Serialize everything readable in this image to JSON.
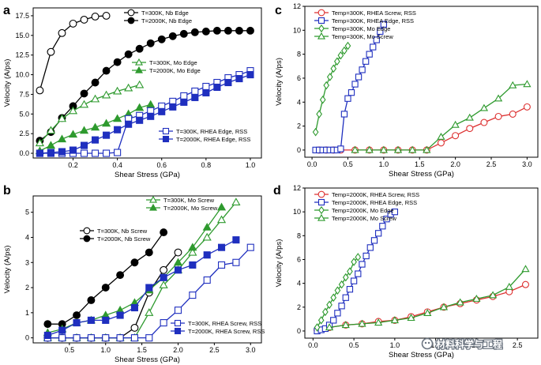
{
  "figure": {
    "watermark": "材料科学与工程"
  },
  "chart_data": [
    {
      "panel": "a",
      "type": "line",
      "xlabel": "Shear Stress (GPa)",
      "ylabel": "Velocity (A/ps)",
      "xlim": [
        0.02,
        1.05
      ],
      "ylim": [
        -0.6,
        18.5
      ],
      "xticks": [
        0.2,
        0.4,
        0.6,
        0.8,
        1.0
      ],
      "xticklabels": [
        "0.2",
        "0.4",
        "0.6",
        "0.8",
        "1.0"
      ],
      "yticks": [
        0,
        2.5,
        5,
        7.5,
        10,
        12.5,
        15,
        17.5
      ],
      "yticklabels": [
        "0.0",
        "2.5",
        "5.0",
        "7.5",
        "10.0",
        "12.5",
        "15.0",
        "17.5"
      ],
      "legend_groups": [
        {
          "anchor": "top-center",
          "entries": [
            0,
            1
          ]
        },
        {
          "anchor": "upper-middle",
          "entries": [
            2,
            3
          ]
        },
        {
          "anchor": "lower-right",
          "entries": [
            4,
            5
          ]
        }
      ],
      "series": [
        {
          "name": "T=300K, Nb Edge",
          "color": "#000000",
          "marker": "circle",
          "filled": false,
          "x": [
            0.05,
            0.1,
            0.15,
            0.2,
            0.25,
            0.3,
            0.35
          ],
          "y": [
            8.0,
            12.9,
            15.3,
            16.5,
            17.0,
            17.4,
            17.5
          ]
        },
        {
          "name": "T=2000K, Nb Edge",
          "color": "#000000",
          "marker": "circle",
          "filled": true,
          "x": [
            0.05,
            0.1,
            0.15,
            0.2,
            0.25,
            0.3,
            0.35,
            0.4,
            0.45,
            0.5,
            0.55,
            0.6,
            0.65,
            0.7,
            0.75,
            0.8,
            0.85,
            0.9,
            0.95,
            1.0
          ],
          "y": [
            1.6,
            2.7,
            4.5,
            6.0,
            7.6,
            9.0,
            10.5,
            11.6,
            12.6,
            13.3,
            14.0,
            14.5,
            14.9,
            15.2,
            15.4,
            15.5,
            15.6,
            15.6,
            15.6,
            15.6
          ]
        },
        {
          "name": "T=300K, Mo Edge",
          "color": "#2e9a2e",
          "marker": "triangle",
          "filled": false,
          "x": [
            0.05,
            0.1,
            0.15,
            0.2,
            0.25,
            0.3,
            0.35,
            0.4,
            0.45,
            0.5
          ],
          "y": [
            1.3,
            2.9,
            4.4,
            5.4,
            6.2,
            6.9,
            7.4,
            7.9,
            8.3,
            8.7
          ]
        },
        {
          "name": "T=2000K, Mo Edge",
          "color": "#2e9a2e",
          "marker": "triangle",
          "filled": true,
          "x": [
            0.05,
            0.1,
            0.15,
            0.2,
            0.25,
            0.3,
            0.35,
            0.4,
            0.45,
            0.5,
            0.55
          ],
          "y": [
            0.3,
            1.0,
            1.8,
            2.4,
            2.9,
            3.3,
            3.8,
            4.4,
            5.0,
            5.8,
            6.2
          ]
        },
        {
          "name": "T=300K, RHEA Edge, RSS",
          "color": "#1f2fbf",
          "marker": "square",
          "filled": false,
          "x": [
            0.05,
            0.1,
            0.15,
            0.2,
            0.25,
            0.3,
            0.35,
            0.4,
            0.45,
            0.5,
            0.55,
            0.6,
            0.65,
            0.7,
            0.75,
            0.8,
            0.85,
            0.9,
            0.95,
            1.0
          ],
          "y": [
            0.0,
            0.0,
            0.0,
            0.0,
            0.0,
            0.0,
            0.0,
            0.1,
            4.4,
            4.8,
            5.4,
            6.0,
            6.6,
            7.3,
            7.9,
            8.5,
            9.0,
            9.6,
            10.0,
            10.5
          ]
        },
        {
          "name": "T=2000K, RHEA Edge, RSS",
          "color": "#1f2fbf",
          "marker": "square",
          "filled": true,
          "x": [
            0.05,
            0.1,
            0.15,
            0.2,
            0.25,
            0.3,
            0.35,
            0.4,
            0.45,
            0.5,
            0.55,
            0.6,
            0.65,
            0.7,
            0.75,
            0.8,
            0.85,
            0.9,
            0.95,
            1.0
          ],
          "y": [
            0.0,
            0.1,
            0.2,
            0.4,
            1.0,
            1.7,
            2.3,
            3.0,
            3.7,
            4.2,
            4.7,
            5.3,
            5.9,
            6.5,
            7.1,
            7.7,
            8.4,
            9.0,
            9.5,
            10.0
          ]
        }
      ]
    },
    {
      "panel": "b",
      "type": "line",
      "xlabel": "Shear Stress (GPa)",
      "ylabel": "Velocity (A/ps)",
      "xlim": [
        0.0,
        3.15
      ],
      "ylim": [
        -0.2,
        5.65
      ],
      "xticks": [
        0.5,
        1.0,
        1.5,
        2.0,
        2.5,
        3.0
      ],
      "xticklabels": [
        "0.5",
        "1.0",
        "1.5",
        "2.0",
        "2.5",
        "3.0"
      ],
      "yticks": [
        0,
        1,
        2,
        3,
        4,
        5
      ],
      "yticklabels": [
        "0",
        "1",
        "2",
        "3",
        "4",
        "5"
      ],
      "legend_groups": [
        {
          "anchor": "top-right-inner",
          "entries": [
            2,
            3
          ]
        },
        {
          "anchor": "upper-left-middle",
          "entries": [
            0,
            1
          ]
        },
        {
          "anchor": "lower-right",
          "entries": [
            4,
            5
          ]
        }
      ],
      "series": [
        {
          "name": "T=300K, Nb Screw",
          "color": "#000000",
          "marker": "circle",
          "filled": false,
          "x": [
            0.2,
            0.4,
            0.6,
            0.8,
            1.0,
            1.2,
            1.4,
            1.6,
            1.8,
            2.0
          ],
          "y": [
            0.0,
            0.0,
            0.0,
            0.0,
            0.0,
            0.0,
            0.4,
            1.8,
            2.7,
            3.4
          ]
        },
        {
          "name": "T=2000K, Nb Screw",
          "color": "#000000",
          "marker": "circle",
          "filled": true,
          "x": [
            0.2,
            0.4,
            0.6,
            0.8,
            1.0,
            1.2,
            1.4,
            1.6,
            1.8
          ],
          "y": [
            0.55,
            0.55,
            0.9,
            1.5,
            2.0,
            2.5,
            3.0,
            3.4,
            4.2
          ]
        },
        {
          "name": "T=300K, Mo Screw",
          "color": "#2e9a2e",
          "marker": "triangle",
          "filled": false,
          "x": [
            0.2,
            0.4,
            0.6,
            0.8,
            1.0,
            1.2,
            1.4,
            1.6,
            1.8,
            2.0,
            2.2,
            2.4,
            2.6,
            2.8
          ],
          "y": [
            0.0,
            0.0,
            0.0,
            0.0,
            0.0,
            0.0,
            0.0,
            1.0,
            2.1,
            2.7,
            3.4,
            4.0,
            4.7,
            5.4
          ]
        },
        {
          "name": "T=2000K, Mo Screw",
          "color": "#2e9a2e",
          "marker": "triangle",
          "filled": true,
          "x": [
            0.2,
            0.4,
            0.6,
            0.8,
            1.0,
            1.2,
            1.4,
            1.6,
            1.8,
            2.0,
            2.2,
            2.4,
            2.6
          ],
          "y": [
            0.2,
            0.35,
            0.6,
            0.7,
            0.9,
            1.1,
            1.4,
            1.9,
            2.4,
            3.0,
            3.6,
            4.4,
            5.2
          ]
        },
        {
          "name": "T=300K, RHEA Screw, RSS",
          "color": "#1f2fbf",
          "marker": "square",
          "filled": false,
          "x": [
            0.2,
            0.4,
            0.6,
            0.8,
            1.0,
            1.2,
            1.4,
            1.6,
            1.8,
            2.0,
            2.2,
            2.4,
            2.6,
            2.8,
            3.0
          ],
          "y": [
            0.0,
            0.0,
            0.0,
            0.0,
            0.0,
            0.0,
            0.0,
            0.0,
            0.6,
            1.1,
            1.7,
            2.3,
            2.9,
            3.0,
            3.6
          ]
        },
        {
          "name": "T=2000K, RHEA Screw, RSS",
          "color": "#1f2fbf",
          "marker": "square",
          "filled": true,
          "x": [
            0.2,
            0.4,
            0.6,
            0.8,
            1.0,
            1.2,
            1.4,
            1.6,
            1.8,
            2.0,
            2.2,
            2.4,
            2.6,
            2.8
          ],
          "y": [
            0.1,
            0.3,
            0.6,
            0.7,
            0.7,
            0.9,
            1.2,
            2.0,
            2.4,
            2.7,
            2.9,
            3.3,
            3.6,
            3.9
          ]
        }
      ]
    },
    {
      "panel": "c",
      "type": "line",
      "xlabel": "Shear Stress (GPa)",
      "ylabel": "Velocity (A/ps)",
      "xlim": [
        -0.1,
        3.15
      ],
      "ylim": [
        -0.6,
        12.0
      ],
      "xticks": [
        0.0,
        0.5,
        1.0,
        1.5,
        2.0,
        2.5,
        3.0
      ],
      "xticklabels": [
        "0.0",
        "0.5",
        "1.0",
        "1.5",
        "2.0",
        "2.5",
        "3.0"
      ],
      "yticks": [
        0,
        2,
        4,
        6,
        8,
        10,
        12
      ],
      "yticklabels": [
        "0",
        "2",
        "4",
        "6",
        "8",
        "10",
        "12"
      ],
      "legend_groups": [
        {
          "anchor": "top-left",
          "entries": [
            0,
            1,
            2,
            3
          ]
        }
      ],
      "series": [
        {
          "name": "Temp=300K, RHEA Screw, RSS",
          "color": "#dd3030",
          "marker": "circle",
          "filled": false,
          "x": [
            0.1,
            0.2,
            0.3,
            0.4,
            0.6,
            0.8,
            1.0,
            1.2,
            1.4,
            1.6,
            1.8,
            2.0,
            2.2,
            2.4,
            2.6,
            2.8,
            3.0
          ],
          "y": [
            0,
            0,
            0,
            0,
            0,
            0,
            0,
            0,
            0,
            0.0,
            0.6,
            1.2,
            1.8,
            2.3,
            2.8,
            3.0,
            3.6
          ]
        },
        {
          "name": "Temp=300K, RHEA Edge, RSS",
          "color": "#1f2fbf",
          "marker": "square",
          "filled": false,
          "x": [
            0.05,
            0.1,
            0.15,
            0.2,
            0.25,
            0.3,
            0.35,
            0.4,
            0.45,
            0.5,
            0.55,
            0.6,
            0.65,
            0.7,
            0.75,
            0.8,
            0.85,
            0.9,
            0.95,
            1.0
          ],
          "y": [
            0.0,
            0.0,
            0.0,
            0.0,
            0.0,
            0.0,
            0.0,
            0.1,
            3.0,
            4.3,
            4.8,
            5.5,
            6.1,
            6.7,
            7.4,
            8.0,
            8.6,
            9.2,
            9.9,
            10.5
          ]
        },
        {
          "name": "Temp=300K, Mo Edge",
          "color": "#2e9a2e",
          "marker": "diamond",
          "filled": false,
          "x": [
            0.05,
            0.1,
            0.15,
            0.2,
            0.25,
            0.3,
            0.35,
            0.4,
            0.45,
            0.5
          ],
          "y": [
            1.5,
            3.0,
            4.2,
            5.4,
            6.1,
            6.8,
            7.4,
            7.9,
            8.3,
            8.7
          ]
        },
        {
          "name": "Temp=300K, Mo Screw",
          "color": "#2e9a2e",
          "marker": "triangle",
          "filled": false,
          "x": [
            0.6,
            0.8,
            1.0,
            1.2,
            1.4,
            1.6,
            1.8,
            2.0,
            2.2,
            2.4,
            2.6,
            2.8,
            3.0
          ],
          "y": [
            0.0,
            0.0,
            0.0,
            0.0,
            0.0,
            0.0,
            1.1,
            2.1,
            2.7,
            3.5,
            4.3,
            5.4,
            5.5
          ]
        }
      ]
    },
    {
      "panel": "d",
      "type": "line",
      "xlabel": "Shear Stress (GPa)",
      "ylabel": "Velocity (A/ps)",
      "xlim": [
        -0.1,
        2.75
      ],
      "ylim": [
        -0.6,
        12.0
      ],
      "xticks": [
        0.0,
        0.5,
        1.0,
        1.5,
        2.0,
        2.5
      ],
      "xticklabels": [
        "0.0",
        "0.5",
        "1.0",
        "1.5",
        "2.0",
        "2.5"
      ],
      "yticks": [
        0,
        2,
        4,
        6,
        8,
        10,
        12
      ],
      "yticklabels": [
        "0",
        "2",
        "4",
        "6",
        "8",
        "10",
        "12"
      ],
      "legend_groups": [
        {
          "anchor": "top-left",
          "entries": [
            0,
            1,
            2,
            3
          ]
        }
      ],
      "series": [
        {
          "name": "Temp=2000K, RHEA Screw, RSS",
          "color": "#dd3030",
          "marker": "circle",
          "filled": false,
          "x": [
            0.05,
            0.2,
            0.4,
            0.6,
            0.8,
            1.0,
            1.2,
            1.4,
            1.6,
            1.8,
            2.0,
            2.2,
            2.4,
            2.6
          ],
          "y": [
            0.1,
            0.3,
            0.5,
            0.6,
            0.8,
            0.9,
            1.2,
            1.6,
            2.0,
            2.3,
            2.6,
            2.9,
            3.3,
            3.9
          ]
        },
        {
          "name": "Temp=2000K, RHEA Edge, RSS",
          "color": "#1f2fbf",
          "marker": "square",
          "filled": false,
          "x": [
            0.05,
            0.1,
            0.15,
            0.2,
            0.25,
            0.3,
            0.35,
            0.4,
            0.45,
            0.5,
            0.55,
            0.6,
            0.65,
            0.7,
            0.75,
            0.8,
            0.85,
            0.9,
            0.95,
            1.0
          ],
          "y": [
            0.0,
            0.1,
            0.2,
            0.5,
            0.9,
            1.5,
            2.1,
            2.8,
            3.5,
            4.2,
            4.8,
            5.6,
            6.3,
            7.0,
            7.6,
            8.2,
            8.8,
            9.4,
            9.8,
            10.0
          ]
        },
        {
          "name": "Temp=2000K, Mo Edge",
          "color": "#2e9a2e",
          "marker": "diamond",
          "filled": false,
          "x": [
            0.05,
            0.1,
            0.15,
            0.2,
            0.25,
            0.3,
            0.35,
            0.4,
            0.45,
            0.5,
            0.55
          ],
          "y": [
            0.3,
            0.9,
            1.6,
            2.2,
            2.8,
            3.4,
            3.9,
            4.5,
            5.0,
            5.8,
            6.2
          ]
        },
        {
          "name": "Temp=2000K, Mo Screw",
          "color": "#2e9a2e",
          "marker": "triangle",
          "filled": false,
          "x": [
            0.2,
            0.4,
            0.6,
            0.8,
            1.0,
            1.2,
            1.4,
            1.6,
            1.8,
            2.0,
            2.2,
            2.4,
            2.6
          ],
          "y": [
            0.3,
            0.5,
            0.6,
            0.7,
            0.9,
            1.1,
            1.5,
            2.0,
            2.4,
            2.7,
            3.0,
            3.7,
            5.2
          ]
        }
      ]
    }
  ]
}
